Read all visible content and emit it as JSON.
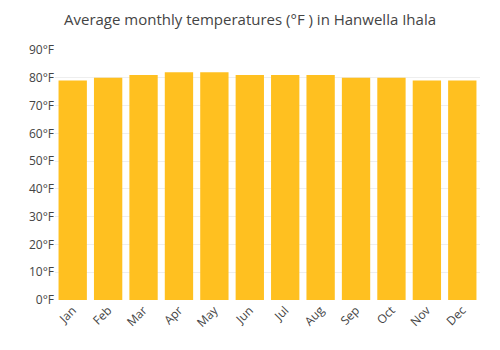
{
  "chart_data": {
    "type": "bar",
    "title": "Average monthly temperatures (°F ) in Hanwella Ihala",
    "categories": [
      "Jan",
      "Feb",
      "Mar",
      "Apr",
      "May",
      "Jun",
      "Jul",
      "Aug",
      "Sep",
      "Oct",
      "Nov",
      "Dec"
    ],
    "values": [
      79,
      80,
      81,
      82,
      82,
      81,
      81,
      81,
      80,
      80,
      79,
      79
    ],
    "color": "#FFC020",
    "ylim": [
      0,
      90
    ],
    "yticks": [
      {
        "value": 0,
        "label": "0°F"
      },
      {
        "value": 10,
        "label": "10°F"
      },
      {
        "value": 20,
        "label": "20°F"
      },
      {
        "value": 30,
        "label": "30°F"
      },
      {
        "value": 40,
        "label": "40°F"
      },
      {
        "value": 50,
        "label": "50°F"
      },
      {
        "value": 60,
        "label": "60°F"
      },
      {
        "value": 70,
        "label": "70°F"
      },
      {
        "value": 80,
        "label": "80°F"
      },
      {
        "value": 90,
        "label": "90°F"
      }
    ],
    "grid": true
  }
}
